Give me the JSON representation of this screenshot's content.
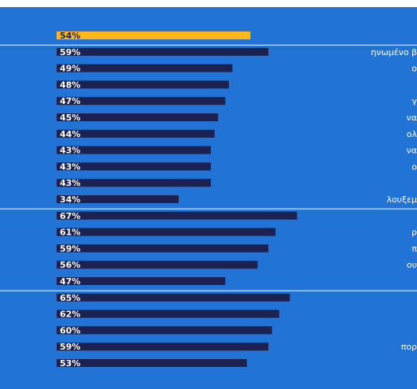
{
  "chart_data": {
    "type": "bar",
    "orientation": "horizontal",
    "x_range": [
      0,
      100
    ],
    "colors": {
      "highlight": "#ffb81c",
      "bar": "#1b2151",
      "background": "#2173d6",
      "separator": "#ffffff"
    },
    "groups": [
      {
        "items": [
          {
            "label": "",
            "value": 54,
            "value_label": "54%",
            "highlight": true
          }
        ]
      },
      {
        "items": [
          {
            "label": "ηνωμένο β",
            "value": 59,
            "value_label": "59%"
          },
          {
            "label": "ο",
            "value": 49,
            "value_label": "49%"
          },
          {
            "label": "",
            "value": 48,
            "value_label": "48%"
          },
          {
            "label": "γ",
            "value": 47,
            "value_label": "47%"
          },
          {
            "label": "να",
            "value": 45,
            "value_label": "45%"
          },
          {
            "label": "ολ",
            "value": 44,
            "value_label": "44%"
          },
          {
            "label": "να",
            "value": 43,
            "value_label": "43%"
          },
          {
            "label": "ο",
            "value": 43,
            "value_label": "43%"
          },
          {
            "label": "",
            "value": 43,
            "value_label": "43%"
          },
          {
            "label": "λουξεμ",
            "value": 34,
            "value_label": "34%"
          }
        ]
      },
      {
        "items": [
          {
            "label": "",
            "value": 67,
            "value_label": "67%"
          },
          {
            "label": "ρ",
            "value": 61,
            "value_label": "61%"
          },
          {
            "label": "π",
            "value": 59,
            "value_label": "59%"
          },
          {
            "label": "ου",
            "value": 56,
            "value_label": "56%"
          },
          {
            "label": "",
            "value": 47,
            "value_label": "47%"
          }
        ]
      },
      {
        "items": [
          {
            "label": "",
            "value": 65,
            "value_label": "65%"
          },
          {
            "label": "",
            "value": 62,
            "value_label": "62%"
          },
          {
            "label": "",
            "value": 60,
            "value_label": "60%"
          },
          {
            "label": "πορ",
            "value": 59,
            "value_label": "59%"
          },
          {
            "label": "",
            "value": 53,
            "value_label": "53%"
          }
        ]
      }
    ]
  }
}
